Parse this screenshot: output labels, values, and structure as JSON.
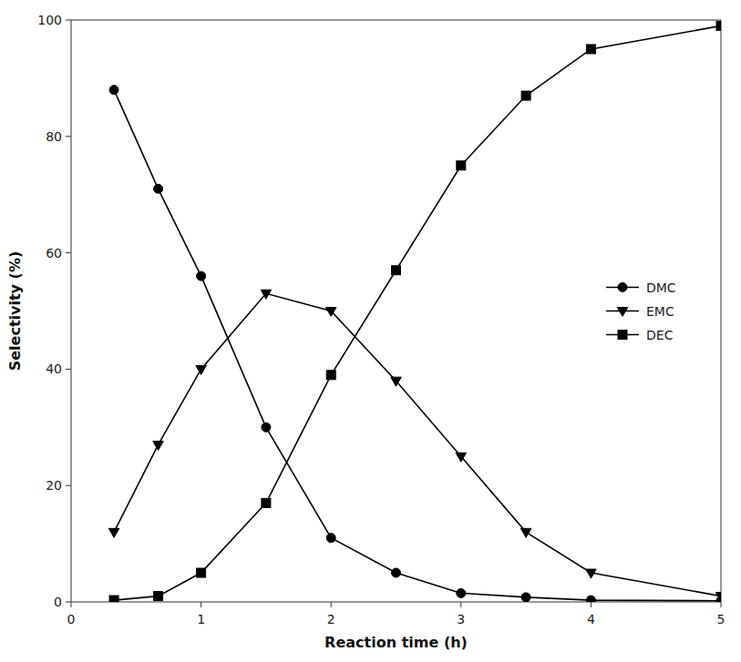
{
  "chart_data": {
    "type": "line",
    "xlabel": "Reaction time (h)",
    "ylabel": "Selectivity (%)",
    "x": [
      0.33,
      0.67,
      1.0,
      1.5,
      2.0,
      2.5,
      3.0,
      3.5,
      4.0,
      5.0
    ],
    "series": [
      {
        "name": "DMC",
        "color": "#000000",
        "marker": "circle",
        "values": [
          88,
          71,
          56,
          30,
          11,
          5,
          1.5,
          0.8,
          0.3,
          0.2
        ]
      },
      {
        "name": "EMC",
        "color": "#000000",
        "marker": "triangle-down",
        "values": [
          12,
          27,
          40,
          53,
          50,
          38,
          25,
          12,
          5,
          1
        ]
      },
      {
        "name": "DEC",
        "color": "#000000",
        "marker": "square",
        "values": [
          0.3,
          1.0,
          5,
          17,
          39,
          57,
          75,
          87,
          95,
          99
        ]
      }
    ],
    "xlim": [
      0,
      5
    ],
    "ylim": [
      0,
      100
    ],
    "xticks": [
      0,
      1,
      2,
      3,
      4,
      5
    ],
    "yticks": [
      0,
      20,
      40,
      60,
      80,
      100
    ],
    "grid": false,
    "legend": "center right"
  }
}
